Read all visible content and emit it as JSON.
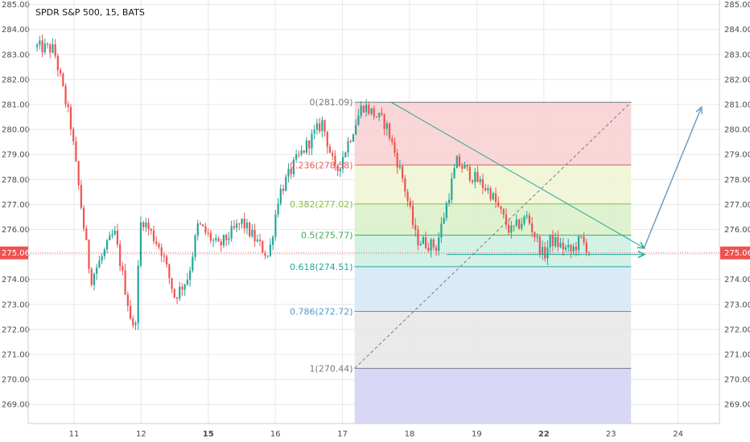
{
  "chart_data": {
    "type": "candlestick",
    "title": "SPDR S&P 500, 15, BATS",
    "y_range": [
      268.5,
      285.0
    ],
    "y_ticks": [
      "269.00",
      "270.00",
      "271.00",
      "272.00",
      "273.00",
      "274.00",
      "275.00",
      "276.00",
      "277.00",
      "278.00",
      "279.00",
      "280.00",
      "281.00",
      "282.00",
      "283.00",
      "284.00",
      "285.00"
    ],
    "x_domain": [
      10.45,
      24.6
    ],
    "x_ticks": [
      {
        "label": "11",
        "value": 11,
        "bold": false
      },
      {
        "label": "12",
        "value": 12,
        "bold": false
      },
      {
        "label": "15",
        "value": 13,
        "bold": true
      },
      {
        "label": "16",
        "value": 14,
        "bold": false
      },
      {
        "label": "17",
        "value": 15,
        "bold": false
      },
      {
        "label": "18",
        "value": 16,
        "bold": false
      },
      {
        "label": "19",
        "value": 17,
        "bold": false
      },
      {
        "label": "22",
        "value": 18,
        "bold": true
      },
      {
        "label": "23",
        "value": 19,
        "bold": false
      },
      {
        "label": "24",
        "value": 20,
        "bold": false
      }
    ],
    "current_price": {
      "label": "275.06",
      "value": 275.06,
      "color": "#ef5350"
    },
    "waypoints": [
      [
        10.45,
        283.3
      ],
      [
        10.7,
        283.2
      ],
      [
        10.95,
        280.2
      ],
      [
        11.15,
        276.0
      ],
      [
        11.25,
        274.0
      ],
      [
        11.6,
        275.9
      ],
      [
        11.9,
        271.7
      ],
      [
        12.0,
        276.5
      ],
      [
        12.3,
        275.2
      ],
      [
        12.5,
        273.3
      ],
      [
        12.7,
        274.1
      ],
      [
        12.85,
        276.2
      ],
      [
        13.15,
        275.3
      ],
      [
        13.5,
        276.3
      ],
      [
        13.9,
        274.9
      ],
      [
        14.05,
        277.4
      ],
      [
        14.3,
        278.7
      ],
      [
        14.7,
        280.3
      ],
      [
        14.9,
        278.2
      ],
      [
        15.3,
        281.0
      ],
      [
        15.65,
        280.2
      ],
      [
        15.9,
        278.0
      ],
      [
        16.1,
        275.6
      ],
      [
        16.4,
        275.3
      ],
      [
        16.7,
        278.7
      ],
      [
        17.2,
        277.5
      ],
      [
        17.5,
        275.9
      ],
      [
        17.75,
        276.5
      ],
      [
        18.0,
        274.9
      ],
      [
        18.1,
        275.6
      ],
      [
        18.4,
        275.1
      ],
      [
        18.55,
        275.6
      ],
      [
        18.7,
        275.06
      ]
    ],
    "fibonacci": {
      "x_start": 15.18,
      "x_end": 19.3,
      "levels": [
        {
          "label": "0(281.09)",
          "value": 281.09,
          "color": "#787b86",
          "fill": "#f8cfd0"
        },
        {
          "label": "0.236(278.58)",
          "value": 278.58,
          "color": "#e05c5c",
          "fill": "#eff5d2"
        },
        {
          "label": "0.382(277.02)",
          "value": 277.02,
          "color": "#8bbd40",
          "fill": "#d9f0c7"
        },
        {
          "label": "0.5(275.77)",
          "value": 275.77,
          "color": "#3fae56",
          "fill": "#cbefe0"
        },
        {
          "label": "0.618(274.51)",
          "value": 274.51,
          "color": "#26a69a",
          "fill": "#d3e8f6"
        },
        {
          "label": "0.786(272.72)",
          "value": 272.72,
          "color": "#4e9bcc",
          "fill": "#e6e6e6"
        },
        {
          "label": "1(270.44)",
          "value": 270.44,
          "color": "#787b86",
          "fill": "#d1d1f5"
        }
      ],
      "below_fill": "#d1d1f5"
    },
    "trendlines": [
      {
        "from": [
          15.18,
          270.44
        ],
        "to": [
          19.3,
          281.09
        ],
        "color": "#787b86",
        "dashed": true
      },
      {
        "from": [
          15.72,
          281.1
        ],
        "to": [
          19.5,
          275.25
        ],
        "color": "#26a69a",
        "dashed": false
      },
      {
        "from": [
          16.55,
          275.0
        ],
        "to": [
          19.5,
          275.0
        ],
        "color": "#26a69a",
        "dashed": false
      },
      {
        "from": [
          19.5,
          275.3
        ],
        "to": [
          20.35,
          280.9
        ],
        "color": "#6b9ec6",
        "dashed": false
      }
    ],
    "colors": {
      "up": "#26a69a",
      "down": "#ef5350",
      "grid": "#e8e8e8",
      "axis": "#cccccc"
    }
  }
}
